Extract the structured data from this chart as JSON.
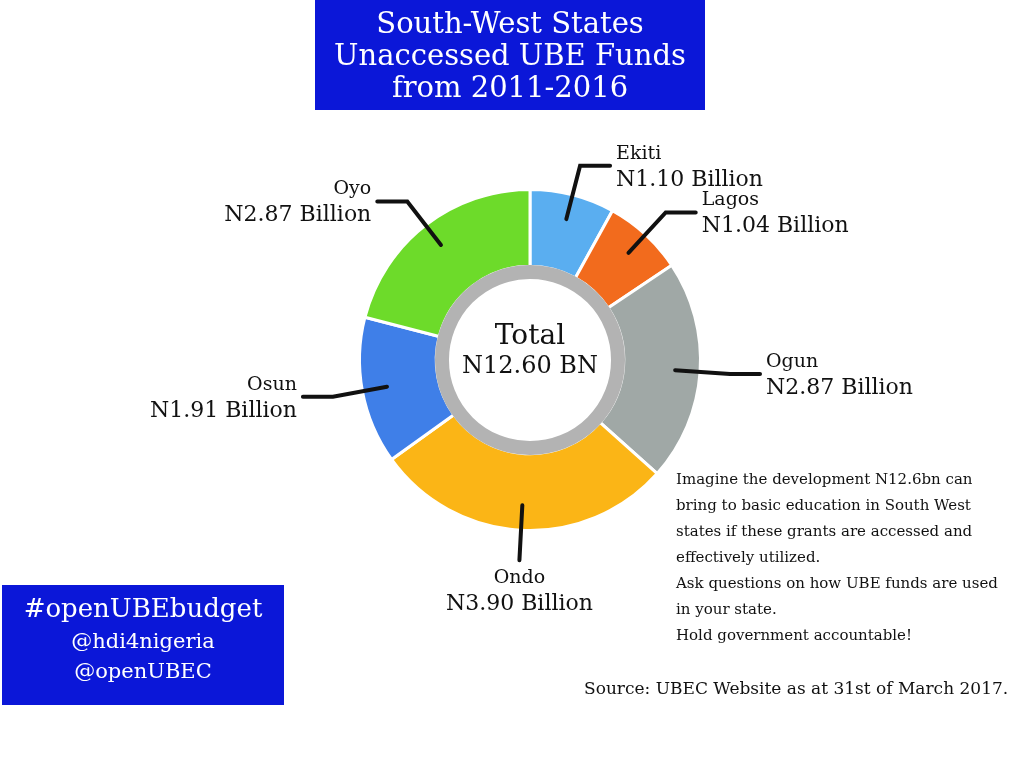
{
  "chart_data": {
    "type": "donut",
    "title": "South-West States Unaccessed UBE Funds from 2011-2016",
    "categories": [
      "Ekiti",
      "Lagos",
      "Ogun",
      "Ondo",
      "Osun",
      "Oyo"
    ],
    "values": [
      1.1,
      1.04,
      2.87,
      3.9,
      1.91,
      2.87
    ],
    "value_labels": [
      "N1.10 Billion",
      "N1.04 Billion",
      "N2.87 Billion",
      "N3.90 Billion",
      "N1.91 Billion",
      "N2.87 Billion"
    ],
    "colors": [
      "#5aaef0",
      "#f26b1d",
      "#a0a8a6",
      "#fbb516",
      "#3f7fe8",
      "#6ddb2a"
    ],
    "legend": false,
    "annotations": [
      "Total",
      "N12.60 BN",
      "Imagine the development N12.6bn can bring to basic education in South West states if these grants are accessed and effectively utilized.",
      "Ask questions on how UBE funds are used in your state.",
      "Hold government accountable!",
      "#openUBEbudget",
      "@hdi4nigeria",
      "@openUBEC",
      "Source: UBEC Website as at 31st of March 2017."
    ]
  }
}
